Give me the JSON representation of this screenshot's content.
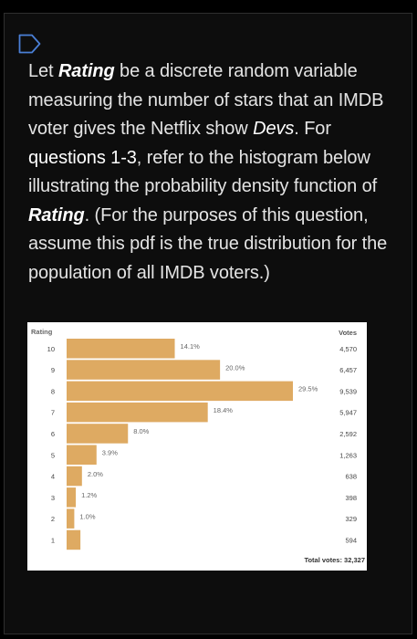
{
  "question": {
    "parts": [
      {
        "text": "Let ",
        "style": "plain"
      },
      {
        "text": "Rating",
        "style": "bold-italic"
      },
      {
        "text": " be a discrete random variable measuring the number of stars that an IMDB voter gives the Netflix show ",
        "style": "plain"
      },
      {
        "text": "Devs",
        "style": "italic"
      },
      {
        "text": ".  For ",
        "style": "plain"
      },
      {
        "text": "questions 1-3",
        "style": "emph"
      },
      {
        "text": ", refer to the histogram below illustrating the probability density function of ",
        "style": "plain"
      },
      {
        "text": "Rating",
        "style": "bold-italic"
      },
      {
        "text": ". (For the purposes of this question, assume this pdf is the true distribution for the population of all IMDB voters.)",
        "style": "plain"
      }
    ]
  },
  "chart_data": {
    "type": "bar",
    "orientation": "horizontal",
    "ylabel": "Rating",
    "votes_label": "Votes",
    "categories": [
      "10",
      "9",
      "8",
      "7",
      "6",
      "5",
      "4",
      "3",
      "2",
      "1"
    ],
    "percent_labels": [
      "14.1%",
      "20.0%",
      "29.5%",
      "18.4%",
      "8.0%",
      "3.9%",
      "2.0%",
      "1.2%",
      "1.0%",
      ""
    ],
    "values": [
      14.1,
      20.0,
      29.5,
      18.4,
      8.0,
      3.9,
      2.0,
      1.2,
      1.0,
      1.8
    ],
    "votes": [
      "4,570",
      "6,457",
      "9,539",
      "5,947",
      "2,592",
      "1,263",
      "638",
      "398",
      "329",
      "594"
    ],
    "total_label": "Total votes: 32,327",
    "bar_color": "#deaa62"
  }
}
